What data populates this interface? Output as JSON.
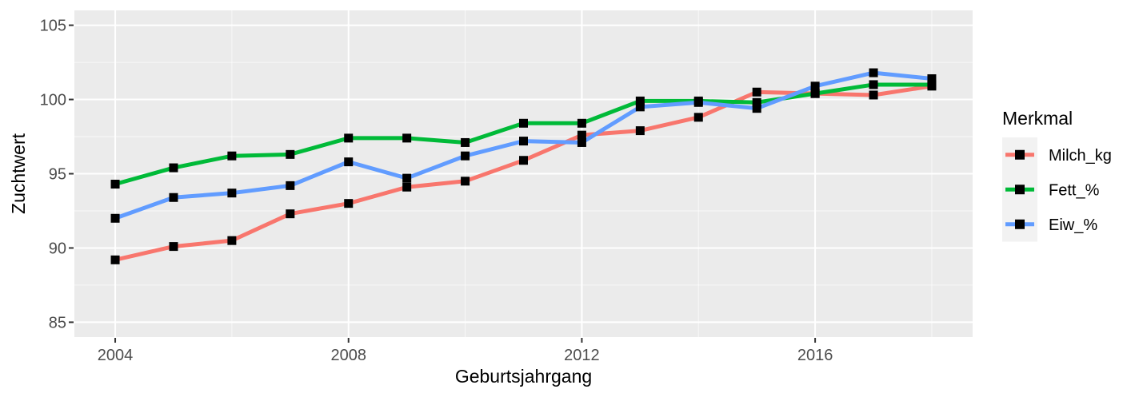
{
  "chart_data": {
    "type": "line",
    "title": "",
    "xlabel": "Geburtsjahrgang",
    "ylabel": "Zuchtwert",
    "legend_title": "Merkmal",
    "legend_position": "right",
    "x": [
      2004,
      2005,
      2006,
      2007,
      2008,
      2009,
      2010,
      2011,
      2012,
      2013,
      2014,
      2015,
      2016,
      2017,
      2018
    ],
    "series": [
      {
        "name": "Milch_kg",
        "color": "#F8766D",
        "values": [
          89.2,
          90.1,
          90.5,
          92.3,
          93.0,
          94.1,
          94.5,
          95.9,
          97.6,
          97.9,
          98.8,
          100.5,
          100.4,
          100.3,
          100.9
        ]
      },
      {
        "name": "Fett_%",
        "color": "#00BA38",
        "values": [
          94.3,
          95.4,
          96.2,
          96.3,
          97.4,
          97.4,
          97.1,
          98.4,
          98.4,
          99.9,
          99.9,
          99.8,
          100.4,
          101.0,
          101.0
        ]
      },
      {
        "name": "Eiw_%",
        "color": "#619CFF",
        "values": [
          92.0,
          93.4,
          93.7,
          94.2,
          95.8,
          94.7,
          96.2,
          97.2,
          97.1,
          99.5,
          99.8,
          99.4,
          100.9,
          101.8,
          101.4
        ]
      }
    ],
    "x_ticks": {
      "values": [
        2004,
        2008,
        2012,
        2016
      ],
      "labels": [
        "2004",
        "2008",
        "2012",
        "2016"
      ]
    },
    "x_minor": [
      2006,
      2010,
      2014,
      2018
    ],
    "y_ticks": {
      "values": [
        85,
        90,
        95,
        100,
        105
      ],
      "labels": [
        "85",
        "90",
        "95",
        "100",
        "105"
      ]
    },
    "y_minor": [
      87.5,
      92.5,
      97.5,
      102.5
    ],
    "xlim": [
      2003.3,
      2018.7
    ],
    "ylim": [
      84,
      106
    ],
    "grid": "on",
    "marker": "black-square",
    "colors": {
      "panel_bg": "#EBEBEB",
      "grid_major": "#FFFFFF",
      "grid_minor": "#FFFFFF",
      "tick_mark": "#333333",
      "tick_label": "#4D4D4D",
      "axis_title": "#000000",
      "marker": "#000000",
      "legend_key_bg": "#F2F2F2",
      "legend_text": "#000000",
      "background": "#FFFFFF"
    }
  }
}
